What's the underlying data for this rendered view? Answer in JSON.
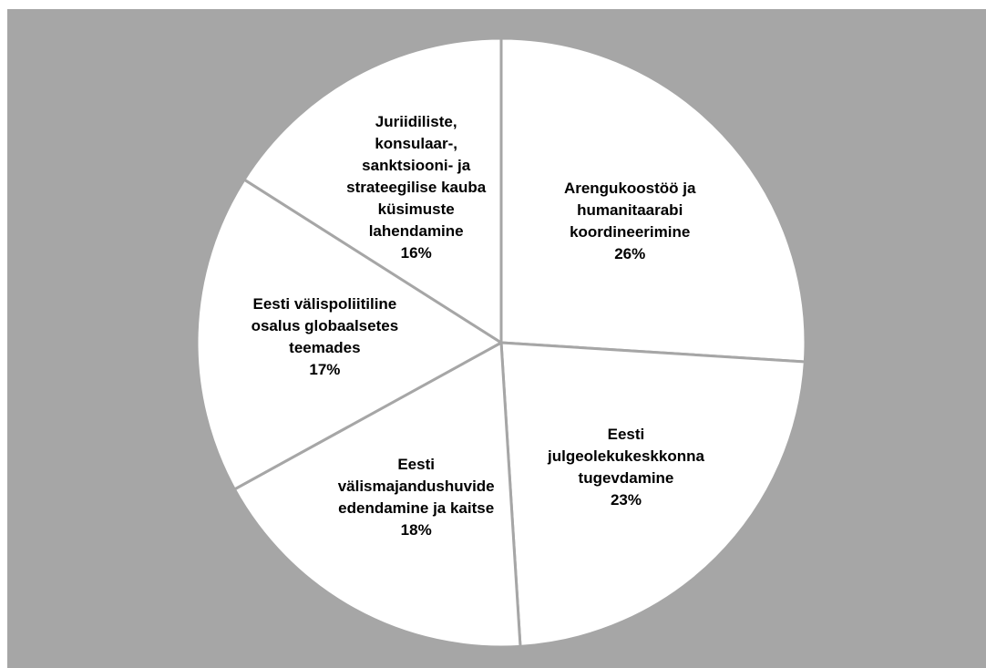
{
  "chart_data": {
    "type": "pie",
    "categories": [
      "Arengukoostöö ja humanitaarabi koordineerimine",
      "Eesti julgeolekukeskkonna tugevdamine",
      "Eesti välismajandushuvide edendamine ja kaitse",
      "Eesti välispoliitiline osalus globaalsetes teemades",
      "Juriidiliste, konsulaar-, sanktsiooni- ja strateegilise kauba küsimuste lahendamine"
    ],
    "values": [
      26,
      23,
      18,
      17,
      16
    ],
    "value_labels": [
      "26%",
      "23%",
      "18%",
      "17%",
      "16%"
    ],
    "color": "#ffffff"
  }
}
